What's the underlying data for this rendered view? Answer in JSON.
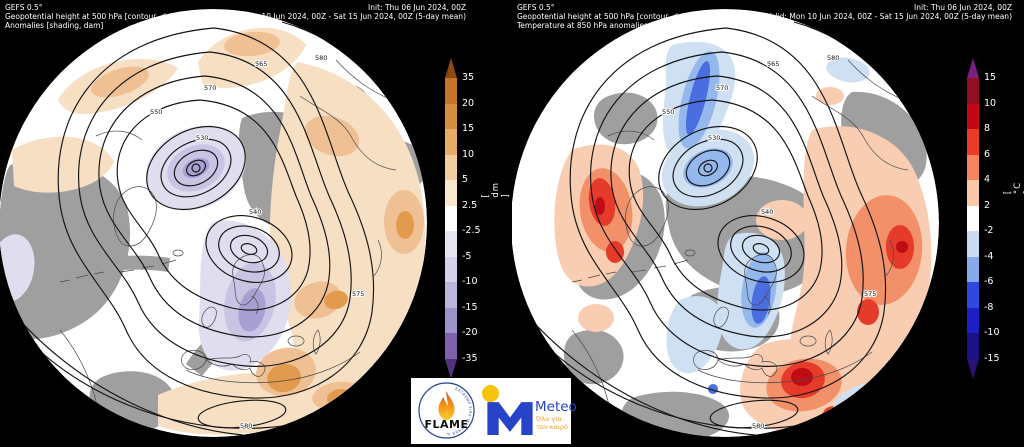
{
  "colors": {
    "gray": "#9f9f9f",
    "o1": "#f7dfc4",
    "o2": "#efc093",
    "o3": "#e19a4e",
    "p1": "#e0ddef",
    "p2": "#c9c4e4",
    "p3": "#a89fd2",
    "r1": "#f8cdb2",
    "r2": "#f2906a",
    "r3": "#e63a2a",
    "r4": "#c00d15",
    "b1": "#cfe0f3",
    "b2": "#94b7ec",
    "b3": "#4a6ee0",
    "contour": "#141414",
    "coast": "#4a4a4a",
    "meteoBlue": "#2743c8",
    "meteoYellow": "#f6c40e",
    "meteoTag": "#f0a028",
    "flameRing": "#23418f"
  },
  "panels": [
    {
      "header": {
        "line1": "GEFS 0.5°",
        "line2": "Geopotential height at 500 hPa [contour, dam]",
        "line3": "Anomalies [shading, dam]",
        "init": "Init: Thu 06 Jun 2024, 00Z",
        "valid": "Valid: Mon 10 Jun 2024, 00Z - Sat 15 Jun 2024, 00Z (5-day mean)"
      },
      "colorbar": {
        "unit": "[ dm ]",
        "ticks": [
          "35",
          "20",
          "15",
          "10",
          "5",
          "2.5",
          "-2.5",
          "-5",
          "-10",
          "-15",
          "-20",
          "-35"
        ],
        "colors": [
          "#8a4a12",
          "#c4742a",
          "#d88e40",
          "#e7ab66",
          "#f2cd9e",
          "#f9e7cf",
          "#ffffff",
          "#e7e5f3",
          "#d5d1ea",
          "#bcb6dd",
          "#9d92c9",
          "#7e61ad",
          "#54317d"
        ]
      },
      "contour_labels": [
        {
          "v": "570"
        },
        {
          "v": "565"
        },
        {
          "v": "580"
        },
        {
          "v": "550"
        },
        {
          "v": "530"
        },
        {
          "v": "540"
        },
        {
          "v": "575"
        },
        {
          "v": "580"
        }
      ]
    },
    {
      "header": {
        "line1": "GEFS 0.5°",
        "line2": "Geopotential height at 500 hPa [contour, dam]",
        "line3": "Temperature at 850 hPa anomalies [shading, °C]",
        "init": "Init: Thu 06 Jun 2024, 00Z",
        "valid": "Valid: Mon 10 Jun 2024, 00Z - Sat 15 Jun 2024, 00Z (5-day mean)"
      },
      "colorbar": {
        "unit": "[ °C ]",
        "ticks": [
          "15",
          "10",
          "8",
          "6",
          "4",
          "2",
          "-2",
          "-4",
          "-6",
          "-8",
          "-10",
          "-15"
        ],
        "colors": [
          "#7b2080",
          "#950f22",
          "#c20715",
          "#ea3b28",
          "#f48560",
          "#f9c8a8",
          "#ffffff",
          "#cadcf2",
          "#88a9e8",
          "#2f49de",
          "#1b20c4",
          "#1c1286",
          "#2e1273"
        ]
      },
      "contour_labels": [
        {
          "v": "570"
        },
        {
          "v": "565"
        },
        {
          "v": "580"
        },
        {
          "v": "550"
        },
        {
          "v": "530"
        },
        {
          "v": "540"
        },
        {
          "v": "575"
        },
        {
          "v": "580"
        }
      ]
    }
  ],
  "logos": {
    "flame": {
      "label": "FLAME",
      "ring_text": "EXTREME FIRE WEATHER & THE"
    },
    "meteo": {
      "label": "Meteo",
      "tagline1": "Όλα για",
      "tagline2": "τον καιρό"
    }
  }
}
